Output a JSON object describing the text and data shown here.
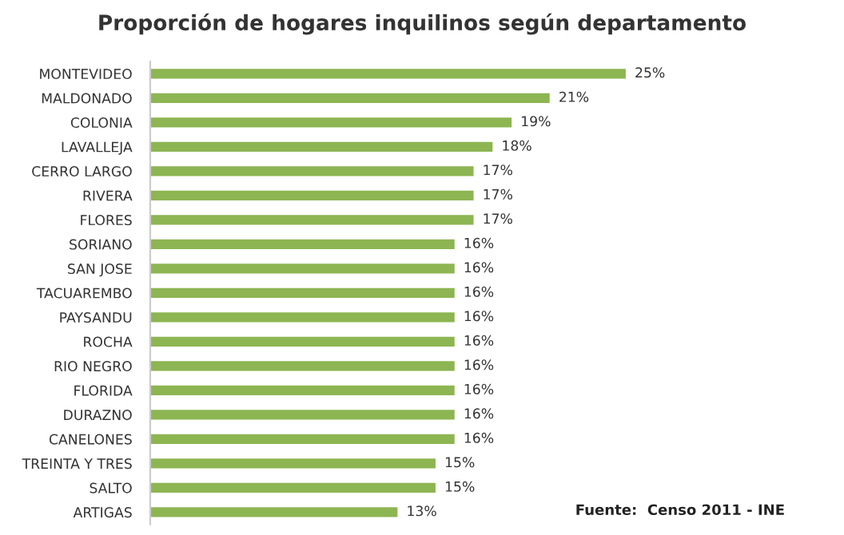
{
  "chart_data": {
    "type": "bar",
    "orientation": "horizontal",
    "title": "Proporción de hogares inquilinos según departamento",
    "categories": [
      "MONTEVIDEO",
      "MALDONADO",
      "COLONIA",
      "LAVALLEJA",
      "CERRO LARGO",
      "RIVERA",
      "FLORES",
      "SORIANO",
      "SAN JOSE",
      "TACUAREMBO",
      "PAYSANDU",
      "ROCHA",
      "RIO NEGRO",
      "FLORIDA",
      "DURAZNO",
      "CANELONES",
      "TREINTA Y TRES",
      "SALTO",
      "ARTIGAS"
    ],
    "values": [
      25,
      21,
      19,
      18,
      17,
      17,
      17,
      16,
      16,
      16,
      16,
      16,
      16,
      16,
      16,
      16,
      15,
      15,
      13
    ],
    "value_labels": [
      "25%",
      "21%",
      "19%",
      "18%",
      "17%",
      "17%",
      "17%",
      "16%",
      "16%",
      "16%",
      "16%",
      "16%",
      "16%",
      "16%",
      "16%",
      "16%",
      "15%",
      "15%",
      "13%"
    ],
    "color": "#8db552",
    "annotations": [
      "Fuente:  Censo 2011 - INE"
    ]
  }
}
